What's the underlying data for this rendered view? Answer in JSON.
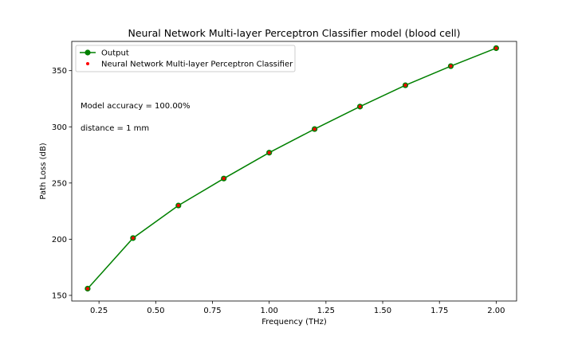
{
  "chart_data": {
    "type": "line",
    "title": "Neural Network Multi-layer Perceptron Classifier model (blood cell)",
    "xlabel": "Frequency (THz)",
    "ylabel": "Path Loss (dB)",
    "xlim": [
      0.13,
      2.09
    ],
    "ylim": [
      145,
      376
    ],
    "xticks": [
      0.25,
      0.5,
      0.75,
      1.0,
      1.25,
      1.5,
      1.75,
      2.0
    ],
    "xtick_labels": [
      "0.25",
      "0.50",
      "0.75",
      "1.00",
      "1.25",
      "1.50",
      "1.75",
      "2.00"
    ],
    "yticks": [
      150,
      200,
      250,
      300,
      350
    ],
    "ytick_labels": [
      "150",
      "200",
      "250",
      "300",
      "350"
    ],
    "grid": false,
    "legend_position": "top-left",
    "series": [
      {
        "name": "Output",
        "style": "line-with-markers",
        "color": "#008000",
        "x": [
          0.2,
          0.4,
          0.6,
          0.8,
          1.0,
          1.2,
          1.4,
          1.6,
          1.8,
          2.0
        ],
        "y": [
          156,
          201,
          230,
          254,
          277,
          298,
          318,
          337,
          354,
          370
        ]
      },
      {
        "name": "Neural Network Multi-layer Perceptron Classifier",
        "style": "markers",
        "color": "#ff0000",
        "x": [
          0.2,
          0.4,
          0.6,
          0.8,
          1.0,
          1.2,
          1.4,
          1.6,
          1.8,
          2.0
        ],
        "y": [
          156,
          201,
          230,
          254,
          277,
          298,
          318,
          337,
          354,
          370
        ]
      }
    ],
    "annotations": [
      "Model accuracy = 100.00%",
      "distance = 1 mm"
    ]
  }
}
